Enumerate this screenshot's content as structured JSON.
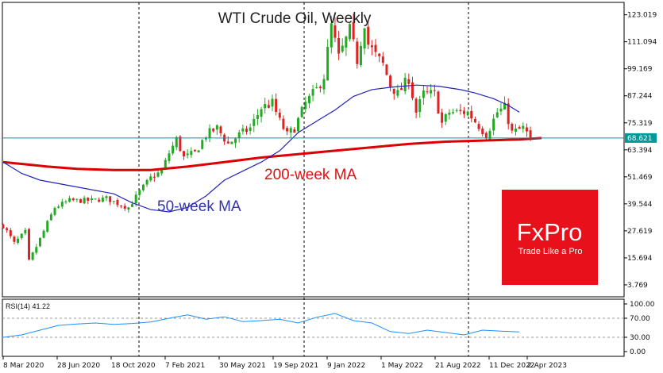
{
  "chart_data": {
    "type": "candlestick",
    "title": "WTI Crude Oil, Weekly",
    "price_axis": {
      "ylim": [
        -1.5,
        128.5
      ],
      "ticks": [
        "123.019",
        "111.094",
        "99.169",
        "87.244",
        "75.319",
        "63.394",
        "51.469",
        "39.544",
        "27.619",
        "15.694",
        "3.769"
      ],
      "tick_values": [
        123.019,
        111.094,
        99.169,
        87.244,
        75.319,
        63.394,
        51.469,
        39.544,
        27.619,
        15.694,
        3.769
      ]
    },
    "current_price": {
      "label": "68.621",
      "value": 68.621,
      "color": "#009999"
    },
    "x_axis": {
      "ticks": [
        "8 Mar 2020",
        "28 Jun 2020",
        "18 Oct 2020",
        "7 Feb 2021",
        "30 May 2021",
        "19 Sep 2021",
        "9 Jan 2022",
        "1 May 2022",
        "21 Aug 2022",
        "11 Dec 2022",
        "2 Apr 2023"
      ],
      "period_separators_at_ticks": [
        2,
        5,
        6,
        9
      ]
    },
    "series": [
      {
        "name": "200-week MA",
        "color": "#dd0000",
        "values": [
          [
            0,
            58
          ],
          [
            6,
            57
          ],
          [
            12,
            56
          ],
          [
            20,
            55
          ],
          [
            30,
            54.5
          ],
          [
            40,
            54.5
          ],
          [
            50,
            56
          ],
          [
            60,
            58
          ],
          [
            70,
            60
          ],
          [
            80,
            61.5
          ],
          [
            90,
            63
          ],
          [
            100,
            64.5
          ],
          [
            110,
            66
          ],
          [
            120,
            67
          ],
          [
            130,
            67.5
          ],
          [
            140,
            68
          ],
          [
            146,
            68.6
          ]
        ]
      },
      {
        "name": "50-week MA",
        "color": "#2222bb",
        "values": [
          [
            0,
            58
          ],
          [
            5,
            53
          ],
          [
            10,
            50
          ],
          [
            20,
            47
          ],
          [
            30,
            44
          ],
          [
            35,
            40
          ],
          [
            40,
            37
          ],
          [
            45,
            36
          ],
          [
            50,
            38
          ],
          [
            55,
            43
          ],
          [
            60,
            50
          ],
          [
            65,
            54
          ],
          [
            70,
            58
          ],
          [
            75,
            63
          ],
          [
            80,
            71
          ],
          [
            85,
            76
          ],
          [
            90,
            81
          ],
          [
            95,
            87
          ],
          [
            100,
            90
          ],
          [
            105,
            91
          ],
          [
            112,
            92
          ],
          [
            118,
            91.5
          ],
          [
            124,
            90
          ],
          [
            128,
            88.5
          ],
          [
            133,
            86
          ],
          [
            137,
            83
          ],
          [
            140,
            80
          ]
        ]
      }
    ],
    "ohlc_keyframes": [
      [
        0,
        30
      ],
      [
        3,
        22
      ],
      [
        6,
        27
      ],
      [
        7,
        14
      ],
      [
        10,
        24
      ],
      [
        14,
        38
      ],
      [
        18,
        41
      ],
      [
        24,
        41
      ],
      [
        28,
        42
      ],
      [
        32,
        39
      ],
      [
        34,
        38
      ],
      [
        37,
        45
      ],
      [
        40,
        51
      ],
      [
        43,
        54
      ],
      [
        45,
        62
      ],
      [
        47,
        68
      ],
      [
        49,
        60
      ],
      [
        52,
        62
      ],
      [
        55,
        70
      ],
      [
        58,
        73
      ],
      [
        61,
        66
      ],
      [
        64,
        70
      ],
      [
        67,
        73
      ],
      [
        70,
        82
      ],
      [
        73,
        84
      ],
      [
        75,
        76
      ],
      [
        77,
        70
      ],
      [
        79,
        73
      ],
      [
        82,
        84
      ],
      [
        85,
        90
      ],
      [
        87,
        96
      ],
      [
        89,
        118
      ],
      [
        91,
        104
      ],
      [
        94,
        116
      ],
      [
        96,
        103
      ],
      [
        98,
        120
      ],
      [
        99,
        110
      ],
      [
        101,
        105
      ],
      [
        103,
        101
      ],
      [
        105,
        92
      ],
      [
        107,
        88
      ],
      [
        110,
        95
      ],
      [
        112,
        80
      ],
      [
        114,
        88
      ],
      [
        117,
        88
      ],
      [
        119,
        75
      ],
      [
        121,
        80
      ],
      [
        124,
        80
      ],
      [
        126,
        80
      ],
      [
        129,
        74
      ],
      [
        131,
        70
      ],
      [
        134,
        80
      ],
      [
        136,
        82
      ],
      [
        138,
        71
      ],
      [
        141,
        73
      ],
      [
        143,
        68.6
      ]
    ],
    "labels": {
      "ma200": "200-week MA",
      "ma50": "50-week MA"
    },
    "rsi": {
      "label": "RSI(14) 41.22",
      "ylim": [
        0,
        100
      ],
      "ticks": [
        "100.00",
        "70.00",
        "30.00",
        "0.00"
      ],
      "tick_values": [
        100,
        70,
        30,
        0
      ],
      "levels": [
        70,
        30
      ],
      "color": "#1e90ff",
      "values": [
        [
          0,
          30
        ],
        [
          5,
          35
        ],
        [
          10,
          45
        ],
        [
          15,
          55
        ],
        [
          20,
          58
        ],
        [
          25,
          60
        ],
        [
          30,
          57
        ],
        [
          35,
          59
        ],
        [
          40,
          62
        ],
        [
          45,
          70
        ],
        [
          50,
          77
        ],
        [
          55,
          68
        ],
        [
          60,
          73
        ],
        [
          65,
          63
        ],
        [
          70,
          65
        ],
        [
          75,
          68
        ],
        [
          80,
          60
        ],
        [
          85,
          72
        ],
        [
          90,
          80
        ],
        [
          95,
          65
        ],
        [
          100,
          60
        ],
        [
          105,
          42
        ],
        [
          110,
          38
        ],
        [
          115,
          45
        ],
        [
          120,
          40
        ],
        [
          125,
          35
        ],
        [
          130,
          45
        ],
        [
          135,
          43
        ],
        [
          140,
          41.22
        ]
      ]
    },
    "grid": false,
    "legend": "none"
  },
  "logo": {
    "brand": "FxPro",
    "tagline": "Trade Like a Pro",
    "color": "#e8101a"
  },
  "colors": {
    "bull": "#22aa22",
    "bear": "#dd2222"
  }
}
